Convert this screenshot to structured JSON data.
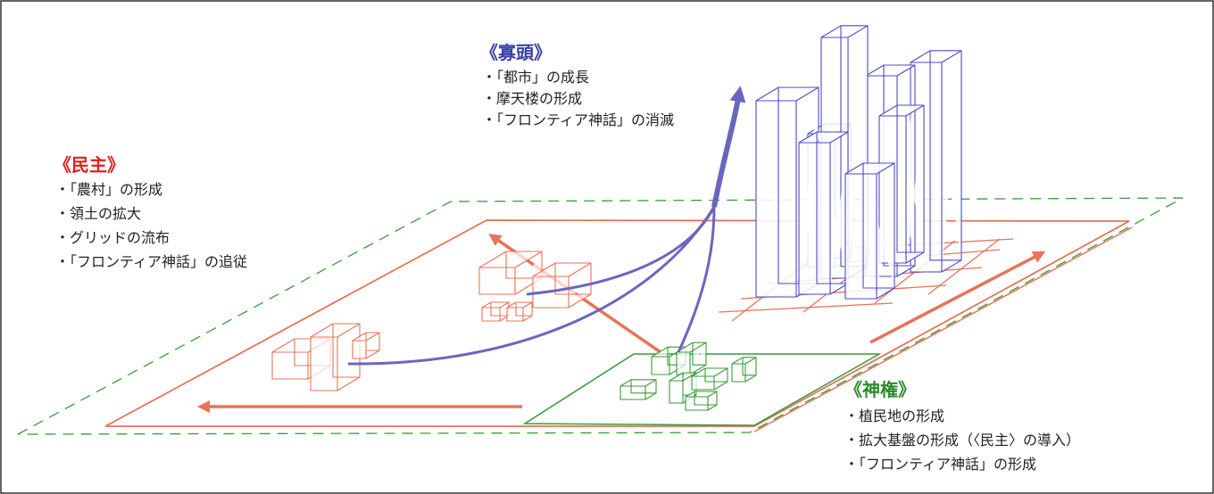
{
  "groups": [
    {
      "title": "《寡頭》",
      "items": [
        "・「都市」の成長",
        "・摩天楼の形成",
        "・「フロンティア神話」の消滅"
      ]
    },
    {
      "title": "《民主》",
      "items": [
        "・「農村」の形成",
        "・領土の拡大",
        "・グリッドの流布",
        "・「フロンティア神話」の追従"
      ]
    },
    {
      "title": "《神権》",
      "items": [
        "・植民地の形成",
        "・拡大基盤の形成（〈民主〉の導入）",
        "・「フロンティア神話」の形成"
      ]
    }
  ]
}
